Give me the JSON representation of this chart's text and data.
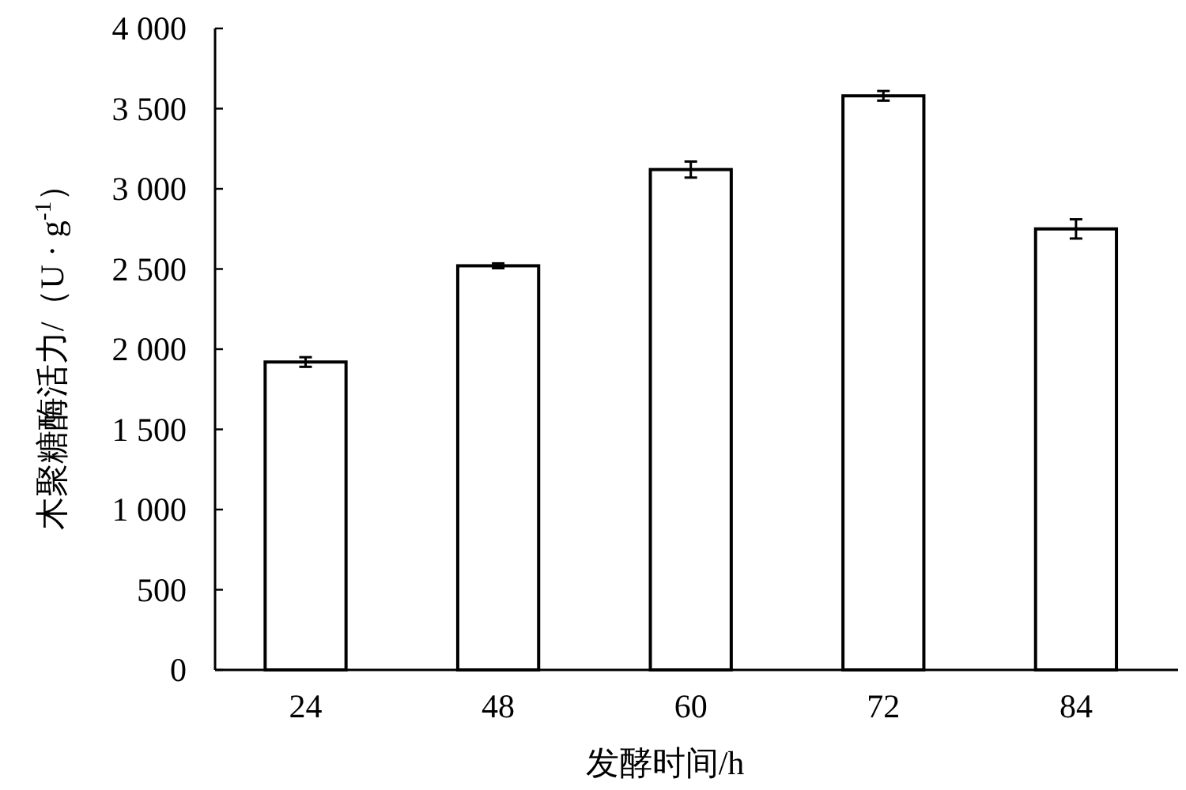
{
  "chart_data": {
    "type": "bar",
    "xlabel": "发酵时间/h",
    "ylabel": "木聚糖酶活力/（U · g$^{-1}$）",
    "categories": [
      "24",
      "48",
      "60",
      "72",
      "84"
    ],
    "values": [
      1920,
      2520,
      3120,
      3580,
      2750
    ],
    "errors": [
      30,
      15,
      50,
      30,
      60
    ],
    "color": "#ffffff",
    "ylim": [
      0,
      4000
    ],
    "yticks": [
      {
        "value": 0,
        "label": "0"
      },
      {
        "value": 500,
        "label": "500"
      },
      {
        "value": 1000,
        "label": "1 000"
      },
      {
        "value": 1500,
        "label": "1 500"
      },
      {
        "value": 2000,
        "label": "2 000"
      },
      {
        "value": 2500,
        "label": "2 500"
      },
      {
        "value": 3000,
        "label": "3 000"
      },
      {
        "value": 3500,
        "label": "3 500"
      },
      {
        "value": 4000,
        "label": "4 000"
      }
    ],
    "grid": false
  }
}
